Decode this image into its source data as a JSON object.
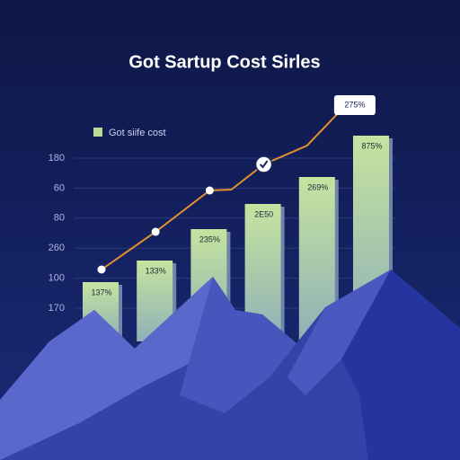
{
  "chart_data": {
    "type": "bar",
    "title": "Got Sartup Cost Sirles",
    "categories": [
      null,
      null,
      null,
      null,
      null,
      null
    ],
    "series": [
      {
        "name": "Got siife cost",
        "color": "#b9dc95",
        "values": [
          66,
          90,
          125,
          153,
          183,
          229
        ],
        "bar_labels": [
          "137%",
          "133%",
          "235%",
          "2E50",
          "269%",
          "875%"
        ]
      }
    ],
    "line": {
      "color": "#e3902f",
      "x": [
        0,
        1,
        2,
        2.4,
        3,
        3.8,
        4.5
      ],
      "values": [
        80,
        122,
        168,
        169,
        197,
        218,
        262
      ],
      "callout": "275%"
    },
    "y_labels": [
      "180",
      "60",
      "80",
      "260",
      "100",
      "170"
    ],
    "ylim": [
      0,
      270
    ],
    "grid": true
  }
}
